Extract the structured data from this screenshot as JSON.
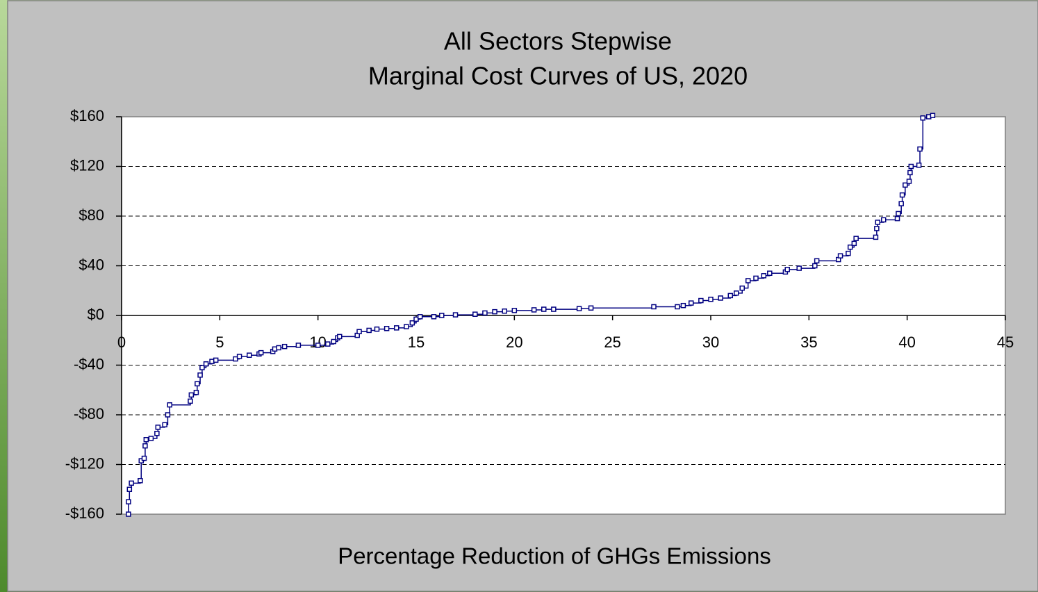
{
  "chart_data": {
    "type": "line",
    "step": true,
    "marker": "square",
    "title": "All Sectors Stepwise",
    "subtitle": "Marginal Cost Curves of US, 2020",
    "x_label": "Percentage Reduction of GHGs Emissions",
    "grid": true,
    "xlim": [
      0,
      45
    ],
    "xticks": [
      0,
      5,
      10,
      15,
      20,
      25,
      30,
      35,
      40,
      45
    ],
    "ylim": [
      -160,
      160
    ],
    "yticks": [
      {
        "value": -160,
        "label": "-$160"
      },
      {
        "value": -120,
        "label": "-$120"
      },
      {
        "value": -80,
        "label": "-$80"
      },
      {
        "value": -40,
        "label": "-$40"
      },
      {
        "value": 0,
        "label": "$0"
      },
      {
        "value": 40,
        "label": "$40"
      },
      {
        "value": 80,
        "label": "$80"
      },
      {
        "value": 120,
        "label": "$120"
      },
      {
        "value": 160,
        "label": "$160"
      }
    ],
    "series": [
      {
        "color": "#000080",
        "x": [
          0.35,
          0.35,
          0.4,
          0.5,
          0.95,
          1.0,
          1.15,
          1.2,
          1.25,
          1.5,
          1.8,
          1.85,
          2.2,
          2.35,
          2.45,
          3.5,
          3.55,
          3.8,
          3.85,
          4.0,
          4.1,
          4.3,
          4.6,
          4.8,
          5.8,
          6.0,
          6.5,
          7.0,
          7.1,
          7.7,
          7.8,
          8.0,
          8.3,
          9.0,
          10.0,
          10.5,
          10.8,
          11.0,
          11.1,
          12.0,
          12.1,
          12.6,
          13.0,
          13.5,
          14.0,
          14.5,
          14.8,
          15.0,
          15.2,
          15.9,
          16.3,
          17.0,
          18.0,
          18.5,
          19.0,
          19.5,
          20.0,
          21.0,
          21.5,
          22.0,
          23.3,
          23.9,
          27.1,
          28.3,
          28.6,
          29.0,
          29.5,
          30.0,
          30.5,
          31.0,
          31.3,
          31.6,
          31.9,
          32.3,
          32.7,
          33.0,
          33.8,
          33.9,
          34.5,
          35.3,
          35.4,
          36.5,
          36.6,
          37.0,
          37.1,
          37.3,
          37.4,
          38.4,
          38.45,
          38.5,
          38.8,
          39.5,
          39.55,
          39.7,
          39.75,
          39.9,
          40.1,
          40.15,
          40.2,
          40.6,
          40.65,
          40.8,
          41.1,
          41.3
        ],
        "values": [
          -160,
          -150,
          -140,
          -135,
          -133,
          -117,
          -115,
          -105,
          -100,
          -99,
          -95,
          -90,
          -88,
          -80,
          -72,
          -69,
          -64,
          -62,
          -55,
          -48,
          -42,
          -39,
          -37,
          -36,
          -35,
          -33,
          -32,
          -31,
          -30,
          -29,
          -27,
          -26,
          -25,
          -24,
          -24,
          -23,
          -21,
          -18,
          -17,
          -16,
          -13,
          -12,
          -11,
          -10.5,
          -10,
          -9,
          -6,
          -3,
          -1,
          -1,
          0,
          0.5,
          1,
          2,
          3,
          3.5,
          4,
          4.5,
          5,
          5,
          5.5,
          6,
          7,
          7,
          8,
          10,
          12,
          13,
          14,
          16,
          18,
          22,
          28,
          30,
          32,
          34,
          35,
          37,
          38,
          40,
          44,
          45,
          48,
          50,
          55,
          58,
          62,
          63,
          70,
          75,
          77,
          78,
          82,
          90,
          97,
          105,
          108,
          115,
          120,
          121,
          134,
          159,
          160,
          161
        ]
      }
    ]
  }
}
